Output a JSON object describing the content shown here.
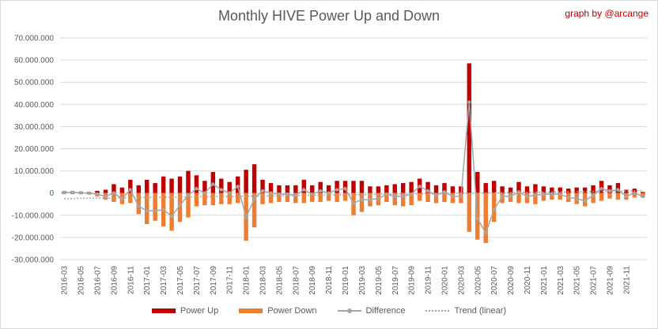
{
  "chart_data": {
    "type": "bar",
    "title": "Monthly HIVE Power Up and Down",
    "credit": "graph by @arcange",
    "ylim": [
      -30000000,
      70000000
    ],
    "y_ticks": [
      "70.000.000",
      "60.000.000",
      "50.000.000",
      "40.000.000",
      "30.000.000",
      "20.000.000",
      "10.000.000",
      "0",
      "-10.000.000",
      "-20.000.000",
      "-30.000.000"
    ],
    "y_tick_values": [
      70000000,
      60000000,
      50000000,
      40000000,
      30000000,
      20000000,
      10000000,
      0,
      -10000000,
      -20000000,
      -30000000
    ],
    "x_tick_labels": [
      "2016-03",
      "2016-05",
      "2016-07",
      "2016-09",
      "2016-11",
      "2017-01",
      "2017-03",
      "2017-05",
      "2017-07",
      "2017-09",
      "2017-11",
      "2018-01",
      "2018-03",
      "2018-05",
      "2018-07",
      "2018-09",
      "2018-11",
      "2019-01",
      "2019-03",
      "2019-05",
      "2019-07",
      "2019-09",
      "2019-11",
      "2020-01",
      "2020-03",
      "2020-05",
      "2020-07",
      "2020-09",
      "2020-11",
      "2021-01",
      "2021-03",
      "2021-05",
      "2021-07",
      "2021-09",
      "2021-11"
    ],
    "grid": true,
    "legend_position": "bottom",
    "colors": {
      "power_up": "#c00000",
      "power_down": "#ed7d31",
      "difference": "#a5a5a5",
      "trend": "#a5a5a5"
    },
    "series": [
      {
        "name": "Power Up",
        "values": [
          800000,
          800000,
          600000,
          500000,
          1000000,
          1500000,
          4000000,
          2500000,
          6000000,
          3500000,
          6000000,
          4500000,
          7500000,
          6500000,
          7500000,
          10000000,
          8000000,
          5500000,
          9500000,
          6500000,
          5000000,
          7500000,
          10500000,
          13000000,
          6000000,
          4500000,
          3500000,
          3500000,
          3500000,
          6000000,
          3500000,
          5000000,
          3500000,
          5500000,
          5500000,
          5500000,
          5500000,
          3000000,
          3000000,
          3500000,
          4000000,
          4500000,
          5000000,
          6500000,
          5000000,
          3500000,
          4500000,
          3000000,
          3000000,
          58500000,
          9500000,
          4500000,
          5500000,
          3000000,
          2500000,
          5000000,
          3000000,
          4000000,
          3000000,
          2500000,
          2500000,
          2000000,
          2500000,
          2500000,
          3500000,
          5500000,
          3500000,
          4500000,
          1500000,
          2000000,
          500000
        ]
      },
      {
        "name": "Power Down",
        "values": [
          -500000,
          -500000,
          -500000,
          -600000,
          -1500000,
          -3000000,
          -4000000,
          -5000000,
          -4500000,
          -9500000,
          -14000000,
          -12500000,
          -15000000,
          -17000000,
          -13000000,
          -11000000,
          -6000000,
          -5500000,
          -5500000,
          -5000000,
          -5000000,
          -4500000,
          -21500000,
          -15500000,
          -5000000,
          -4500000,
          -4000000,
          -4000000,
          -4500000,
          -4500000,
          -4000000,
          -4000000,
          -3500000,
          -4000000,
          -3500000,
          -10000000,
          -8500000,
          -6000000,
          -5500000,
          -4000000,
          -5500000,
          -6000000,
          -5500000,
          -3500000,
          -4000000,
          -4500000,
          -4000000,
          -4500000,
          -4500000,
          -17500000,
          -21000000,
          -22500000,
          -13000000,
          -4500000,
          -4000000,
          -4500000,
          -4500000,
          -5000000,
          -3500000,
          -3000000,
          -3000000,
          -4000000,
          -5000000,
          -6000000,
          -4500000,
          -3500000,
          -2500000,
          -3000000,
          -3000000,
          -2000000,
          -2000000
        ]
      },
      {
        "name": "Difference",
        "values": [
          300000,
          300000,
          100000,
          -100000,
          -500000,
          -1500000,
          0,
          -2500000,
          1500000,
          -6000000,
          -8000000,
          -8000000,
          -7500000,
          -10500000,
          -5500000,
          -1000000,
          2000000,
          0,
          4000000,
          1500000,
          0,
          3000000,
          -11000000,
          -2500000,
          1000000,
          0,
          -500000,
          -500000,
          -1000000,
          1500000,
          -500000,
          1000000,
          0,
          1500000,
          2000000,
          -4500000,
          -3000000,
          -3000000,
          -2500000,
          -500000,
          -1500000,
          -1500000,
          -500000,
          3000000,
          1000000,
          -1000000,
          500000,
          -1500000,
          -1500000,
          41000000,
          -11500000,
          -18000000,
          -7500000,
          -1500000,
          -1500000,
          500000,
          -1500000,
          -1000000,
          -500000,
          -500000,
          -500000,
          -2000000,
          -2500000,
          -3500000,
          -1000000,
          2000000,
          1000000,
          1500000,
          -1500000,
          0,
          -1500000
        ]
      },
      {
        "name": "Trend (linear)",
        "values": [
          -2500000,
          1000000
        ]
      }
    ]
  }
}
